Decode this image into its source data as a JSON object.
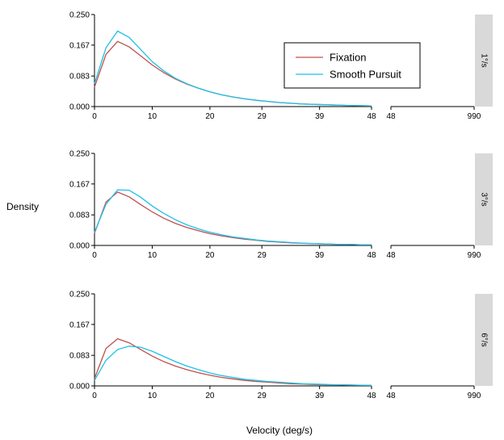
{
  "chart_data": {
    "type": "line",
    "ylabel": "Density",
    "xlabel": "Velocity (deg/s)",
    "ylim": [
      0,
      0.25
    ],
    "y_ticks": [
      "0.000",
      "0.083",
      "0.167",
      "0.250"
    ],
    "x_ticks_left": [
      "0",
      "10",
      "20",
      "29",
      "39",
      "48"
    ],
    "x_ticks_right": [
      "48",
      "990"
    ],
    "x_domain_left": [
      0,
      48
    ],
    "x_domain_right": [
      48,
      990
    ],
    "x_axis_broken": true,
    "legend_position": "inside top-right of first panel",
    "grid": false,
    "colors": {
      "Fixation": "#c0504d",
      "Smooth Pursuit": "#1ec0e8",
      "strip": "#d9d9d9"
    },
    "series_names": [
      "Fixation",
      "Smooth Pursuit"
    ],
    "x": [
      0,
      2,
      4,
      6,
      8,
      10,
      12,
      14,
      16,
      18,
      20,
      22,
      24,
      26,
      28,
      30,
      32,
      34,
      36,
      38,
      40,
      42,
      44,
      46,
      48
    ],
    "panels": [
      {
        "label": "1°/s",
        "series": [
          {
            "name": "Fixation",
            "values": [
              0.053,
              0.142,
              0.177,
              0.162,
              0.138,
              0.113,
              0.092,
              0.075,
              0.061,
              0.05,
              0.04,
              0.032,
              0.026,
              0.021,
              0.017,
              0.014,
              0.011,
              0.009,
              0.007,
              0.006,
              0.005,
              0.004,
              0.003,
              0.002,
              0.002
            ]
          },
          {
            "name": "Smooth Pursuit",
            "values": [
              0.062,
              0.16,
              0.205,
              0.188,
              0.155,
              0.122,
              0.097,
              0.077,
              0.062,
              0.05,
              0.04,
              0.032,
              0.026,
              0.021,
              0.017,
              0.014,
              0.011,
              0.009,
              0.007,
              0.006,
              0.005,
              0.004,
              0.003,
              0.003,
              0.002
            ]
          }
        ]
      },
      {
        "label": "3°/s",
        "series": [
          {
            "name": "Fixation",
            "values": [
              0.033,
              0.118,
              0.145,
              0.132,
              0.111,
              0.091,
              0.074,
              0.06,
              0.049,
              0.04,
              0.032,
              0.026,
              0.021,
              0.017,
              0.014,
              0.011,
              0.009,
              0.007,
              0.006,
              0.005,
              0.004,
              0.003,
              0.003,
              0.002,
              0.002
            ]
          },
          {
            "name": "Smooth Pursuit",
            "values": [
              0.036,
              0.112,
              0.151,
              0.15,
              0.131,
              0.107,
              0.087,
              0.07,
              0.056,
              0.045,
              0.036,
              0.029,
              0.023,
              0.019,
              0.015,
              0.012,
              0.01,
              0.008,
              0.006,
              0.005,
              0.004,
              0.003,
              0.003,
              0.002,
              0.002
            ]
          }
        ]
      },
      {
        "label": "6°/s",
        "series": [
          {
            "name": "Fixation",
            "values": [
              0.02,
              0.102,
              0.128,
              0.117,
              0.099,
              0.081,
              0.066,
              0.054,
              0.044,
              0.036,
              0.029,
              0.023,
              0.019,
              0.015,
              0.012,
              0.01,
              0.008,
              0.006,
              0.005,
              0.004,
              0.003,
              0.003,
              0.002,
              0.002,
              0.001
            ]
          },
          {
            "name": "Smooth Pursuit",
            "values": [
              0.015,
              0.07,
              0.099,
              0.108,
              0.105,
              0.094,
              0.08,
              0.066,
              0.054,
              0.044,
              0.035,
              0.028,
              0.023,
              0.018,
              0.015,
              0.012,
              0.01,
              0.008,
              0.006,
              0.005,
              0.004,
              0.003,
              0.003,
              0.002,
              0.002
            ]
          }
        ]
      }
    ]
  }
}
